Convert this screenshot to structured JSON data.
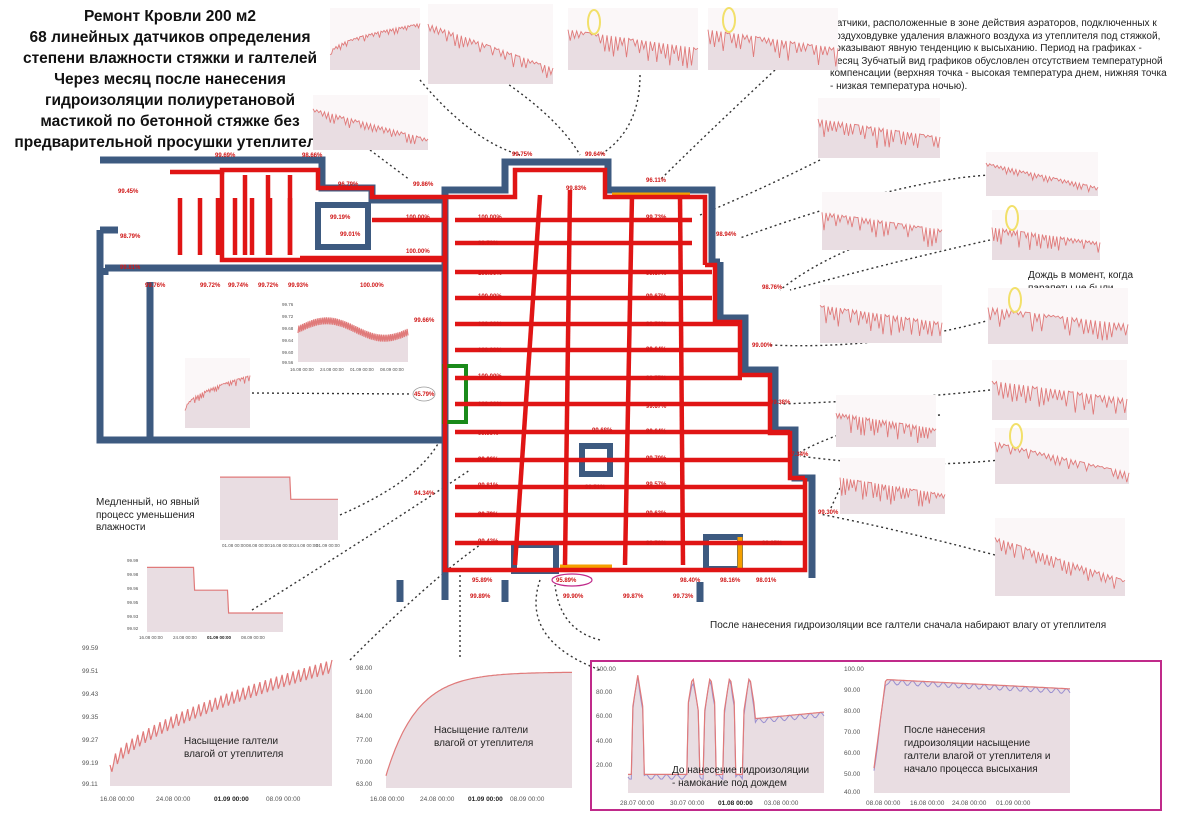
{
  "title_lines": [
    "Ремонт Кровли 200 м2",
    "68 линейных датчиков определения",
    "степени влажности стяжки и галтелей",
    "Через месяц после нанесения",
    "гидроизоляции полиуретановой",
    "мастикой по бетонной стяжке без",
    "предварительной просушки утеплителя"
  ],
  "notes": {
    "aerators": "Датчики, расположенные в зоне действия аэраторов, подключенных к воздуховдувке удаления влажного воздуха из утеплителя под стяжкой, показывают явную тенденцию к высыханию. Период на графиках - месяц Зубчатый вид графиков обусловлен отсутствием температурной компенсации (верхняя точка - высокая температура днем, нижняя точка - низкая температура ночью).",
    "rain": "Дождь в момент, когда парапеты не были полностью закрыты гидроизоляцией",
    "slow": "Медленный, но явный процесс уменьшения влажности",
    "fillets": "После нанесения гидроизоляции все галтели сначала набирают влагу от утеплителя"
  },
  "colors": {
    "wall": "#3d5a80",
    "pipe": "#e01515",
    "orange": "#f5a000",
    "green": "#1a8a1a",
    "chart_line": "#e07a7a",
    "chart_fill": "#e9dde2",
    "frame": "#c02a8a"
  },
  "plan_labels": [
    "99.69%",
    "98.66%",
    "99.45%",
    "96.79%",
    "99.86%",
    "99.75%",
    "99.64%",
    "99.83%",
    "96.11%",
    "99.19%",
    "99.01%",
    "100.00%",
    "100.00%",
    "99.73%",
    "98.79%",
    "98.94%",
    "100.00%",
    "99.73%",
    "99.81%",
    "100.00%",
    "99.67%",
    "98.76%",
    "99.76%",
    "99.72%",
    "99.74%",
    "99.72%",
    "99.93%",
    "100.00%",
    "100.00%",
    "99.67%",
    "99.66%",
    "100.00%",
    "99.72%",
    "99.00%",
    "100.00%",
    "99.64%",
    "45.79%",
    "100.00%",
    "99.75%",
    "99.38%",
    "100.00%",
    "99.67%",
    "99.68%",
    "99.64%",
    "99.99%",
    "97.34%",
    "99.96%",
    "99.70%",
    "94.34%",
    "99.81%",
    "99.51%",
    "99.57%",
    "99.79%",
    "99.63%",
    "99.30%",
    "99.42%",
    "99.70%",
    "99.25%",
    "95.89%",
    "95.89%",
    "98.40%",
    "98.16%",
    "98.01%",
    "99.89%",
    "99.90%",
    "99.87%",
    "99.73%"
  ],
  "big_charts": {
    "a": {
      "y_ticks": [
        "99.59",
        "99.51",
        "99.43",
        "99.35",
        "99.27",
        "99.19",
        "99.11"
      ],
      "x_ticks": [
        "16.08 00:00",
        "24.08 00:00",
        "01.09 00:00",
        "08.09 00:00"
      ],
      "caption_lines": [
        "Насыщение галтели",
        "влагой от утеплителя"
      ]
    },
    "b": {
      "y_ticks": [
        "98.00",
        "91.00",
        "84.00",
        "77.00",
        "70.00",
        "63.00"
      ],
      "x_ticks": [
        "16.08 00:00",
        "24.08 00:00",
        "01.09 00:00",
        "08.09 00:00"
      ],
      "caption_lines": [
        "Насыщение галтели",
        "влагой от утеплителя"
      ]
    },
    "c": {
      "y_ticks": [
        "100.00",
        "80.00",
        "60.00",
        "40.00",
        "20.00"
      ],
      "x_ticks": [
        "28.07 00:00",
        "30.07 00:00",
        "01.08 00:00",
        "03.08 00:00"
      ],
      "caption_lines": [
        "До нанесение гидроизоляции",
        "- намокание под дождем"
      ]
    },
    "d": {
      "y_ticks": [
        "100.00",
        "90.00",
        "80.00",
        "70.00",
        "60.00",
        "50.00",
        "40.00"
      ],
      "x_ticks": [
        "08.08 00:00",
        "16.08 00:00",
        "24.08 00:00",
        "01.09 00:00"
      ],
      "caption_lines": [
        "После нанесения",
        "гидроизоляции насыщение",
        "галтели влагой от утеплителя и",
        "начало процесса высыхания"
      ]
    }
  },
  "mini_charts": {
    "left_top": {
      "y_ticks": [
        "99.76",
        "99.72",
        "99.68",
        "99.64",
        "99.60",
        "99.56"
      ],
      "x_ticks": [
        "16.08 00:00",
        "24.08 00:00",
        "01.09 00:00",
        "08.09 00:00"
      ]
    },
    "slow1": {
      "x_ticks": [
        "01.08 00:00",
        "08.08 00:00",
        "16.08 00:00",
        "24.08 00:00",
        "01.09 00:00"
      ]
    },
    "slow2": {
      "y_ticks": [
        "99.99",
        "99.98",
        "99.96",
        "99.95",
        "99.93",
        "99.92"
      ],
      "x_ticks": [
        "16.08 00:00",
        "24.08 00:00",
        "01.09 00:00",
        "08.09 00:00"
      ]
    }
  }
}
